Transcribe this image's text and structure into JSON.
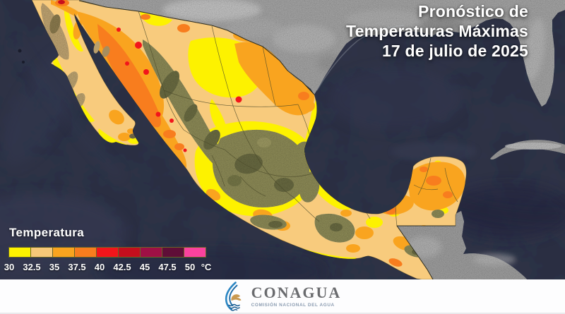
{
  "title": {
    "lines": [
      "Pronóstico de",
      "Temperaturas Máximas",
      "17 de julio de 2025"
    ]
  },
  "legend": {
    "title": "Temperatura",
    "unit": "°C",
    "stops": [
      {
        "label": "30",
        "color": "#fdf200"
      },
      {
        "label": "32.5",
        "color": "#f6c878"
      },
      {
        "label": "35",
        "color": "#f9a41f"
      },
      {
        "label": "37.5",
        "color": "#f87d1e"
      },
      {
        "label": "40",
        "color": "#f2151b"
      },
      {
        "label": "42.5",
        "color": "#c40e1d"
      },
      {
        "label": "45",
        "color": "#9e1045"
      },
      {
        "label": "47.5",
        "color": "#5f0e37"
      },
      {
        "label": "50",
        "color": "#fa429e"
      }
    ]
  },
  "footer": {
    "org": "CONAGUA",
    "org_subtitle": "COMISIÓN NACIONAL DEL AGUA"
  },
  "map": {
    "ocean_color": "#2c3044",
    "foreign_land_color": "#959595",
    "mexico_base_color": "#f8cb7d",
    "terrain_color": "#7f7d4e"
  }
}
